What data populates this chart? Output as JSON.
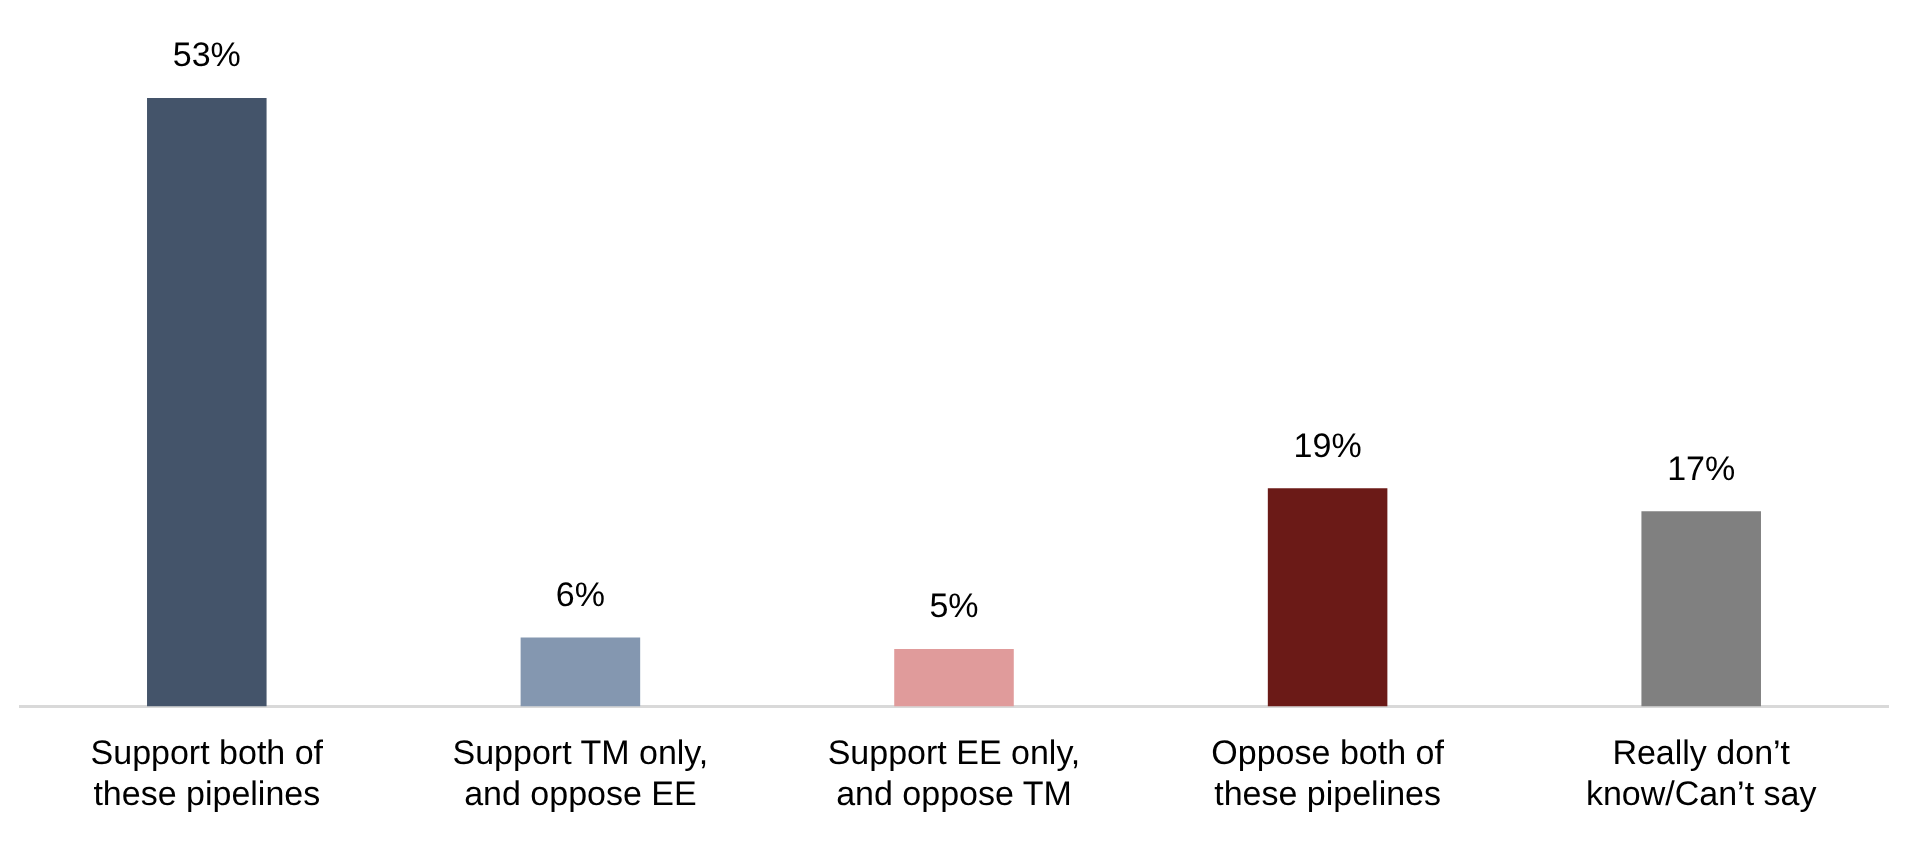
{
  "chart_data": {
    "type": "bar",
    "categories": [
      "Support both of these pipelines",
      "Support TM only, and oppose EE",
      "Support EE only, and oppose TM",
      "Oppose both of these pipelines",
      "Really don’t know/Can’t say"
    ],
    "values": [
      53,
      6,
      5,
      19,
      17
    ],
    "colors": [
      "#44546a",
      "#8497b0",
      "#e09b9b",
      "#6b1a17",
      "#808080"
    ],
    "value_labels": [
      "53%",
      "6%",
      "5%",
      "19%",
      "17%"
    ],
    "ylim": [
      0,
      53
    ],
    "tick_labels": "x",
    "grid": false,
    "legend": false
  }
}
